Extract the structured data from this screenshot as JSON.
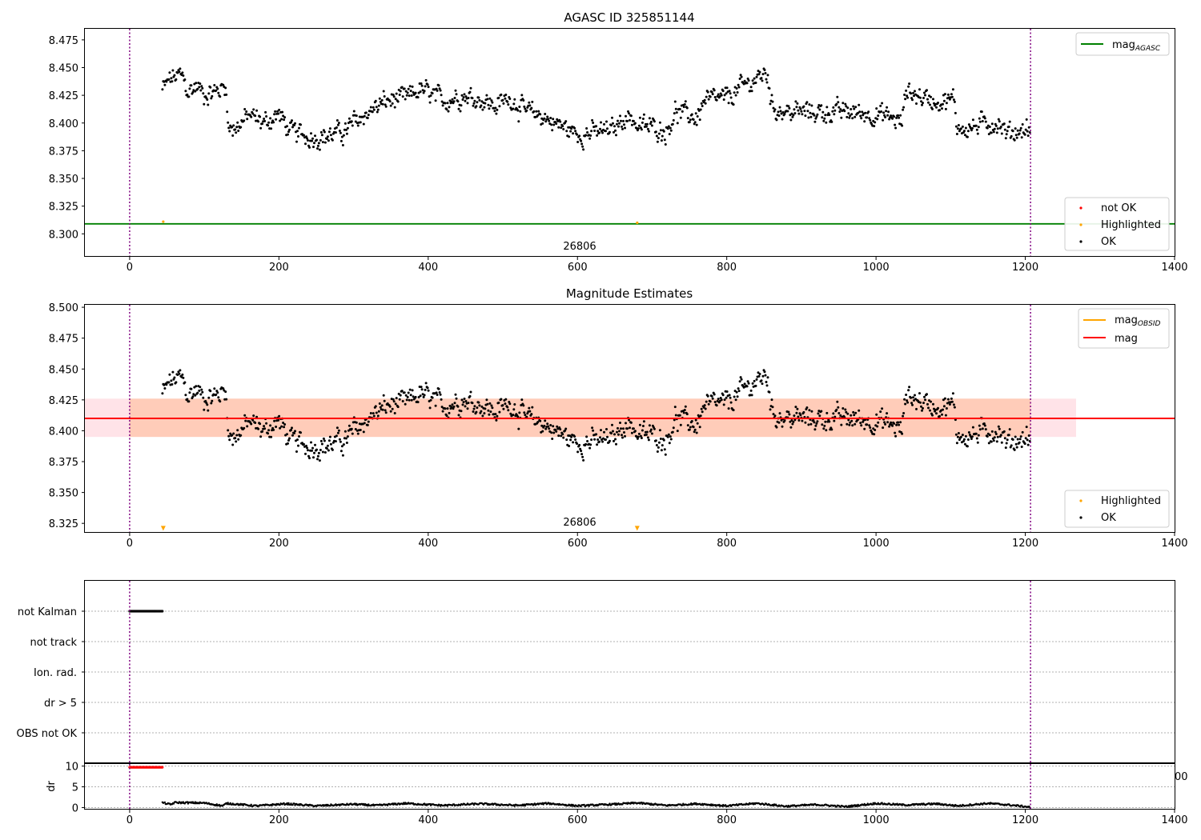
{
  "figure": {
    "panel1_title": "AGASC ID 325851144",
    "panel2_title": "Magnitude Estimates",
    "obsid_label": "26806",
    "dr_axis_label": "dr",
    "clipped_tick_label": "00"
  },
  "chart_data": [
    {
      "type": "scatter",
      "title": "AGASC ID 325851144",
      "xlim": [
        -60,
        1400
      ],
      "ylim": [
        8.28,
        8.485
      ],
      "x_ticks": [
        0,
        200,
        400,
        600,
        800,
        1000,
        1200,
        1400
      ],
      "y_ticks": [
        8.3,
        8.325,
        8.35,
        8.375,
        8.4,
        8.425,
        8.45,
        8.475
      ],
      "obs_start": 0,
      "obs_end": 1207,
      "annotation": "26806",
      "lines": [
        {
          "name": "mag_AGASC",
          "value": 8.309,
          "color": "#008000"
        }
      ],
      "legend_lines": [
        {
          "label": "mag",
          "sub": "AGASC",
          "color": "#008000"
        }
      ],
      "legend_points": [
        {
          "label": "not OK",
          "color": "#ff0000"
        },
        {
          "label": "Highlighted",
          "color": "#ffa500"
        },
        {
          "label": "OK",
          "color": "#000000"
        }
      ],
      "highlighted": [
        {
          "x": 45,
          "y": 8.311
        },
        {
          "x": 680,
          "y": 8.31
        }
      ],
      "series_points": {
        "name": "OK",
        "color": "#000000",
        "x_start": 44,
        "x_end": 1207,
        "anchors": [
          [
            44,
            8.43
          ],
          [
            55,
            8.44
          ],
          [
            70,
            8.443
          ],
          [
            78,
            8.428
          ],
          [
            90,
            8.433
          ],
          [
            100,
            8.426
          ],
          [
            115,
            8.428
          ],
          [
            130,
            8.434
          ],
          [
            132,
            8.395
          ],
          [
            145,
            8.397
          ],
          [
            160,
            8.407
          ],
          [
            180,
            8.4
          ],
          [
            200,
            8.408
          ],
          [
            215,
            8.392
          ],
          [
            240,
            8.388
          ],
          [
            265,
            8.388
          ],
          [
            290,
            8.393
          ],
          [
            300,
            8.4
          ],
          [
            320,
            8.41
          ],
          [
            345,
            8.42
          ],
          [
            370,
            8.422
          ],
          [
            390,
            8.43
          ],
          [
            420,
            8.42
          ],
          [
            445,
            8.425
          ],
          [
            470,
            8.422
          ],
          [
            490,
            8.415
          ],
          [
            510,
            8.423
          ],
          [
            530,
            8.41
          ],
          [
            550,
            8.407
          ],
          [
            570,
            8.4
          ],
          [
            600,
            8.39
          ],
          [
            630,
            8.392
          ],
          [
            650,
            8.394
          ],
          [
            660,
            8.405
          ],
          [
            675,
            8.405
          ],
          [
            680,
            8.396
          ],
          [
            700,
            8.397
          ],
          [
            720,
            8.393
          ],
          [
            730,
            8.41
          ],
          [
            760,
            8.405
          ],
          [
            770,
            8.42
          ],
          [
            800,
            8.422
          ],
          [
            820,
            8.432
          ],
          [
            840,
            8.44
          ],
          [
            855,
            8.445
          ],
          [
            860,
            8.415
          ],
          [
            880,
            8.41
          ],
          [
            900,
            8.41
          ],
          [
            960,
            8.41
          ],
          [
            1000,
            8.408
          ],
          [
            1020,
            8.405
          ],
          [
            1035,
            8.4
          ],
          [
            1040,
            8.43
          ],
          [
            1055,
            8.425
          ],
          [
            1080,
            8.42
          ],
          [
            1105,
            8.42
          ],
          [
            1108,
            8.398
          ],
          [
            1125,
            8.395
          ],
          [
            1150,
            8.4
          ],
          [
            1165,
            8.4
          ],
          [
            1175,
            8.39
          ],
          [
            1200,
            8.395
          ],
          [
            1207,
            8.393
          ]
        ]
      }
    },
    {
      "type": "scatter",
      "title": "Magnitude Estimates",
      "xlim": [
        -60,
        1400
      ],
      "ylim": [
        8.318,
        8.502
      ],
      "x_ticks": [
        0,
        200,
        400,
        600,
        800,
        1000,
        1200,
        1400
      ],
      "y_ticks": [
        8.325,
        8.35,
        8.375,
        8.4,
        8.425,
        8.45,
        8.475,
        8.5
      ],
      "obs_start": 0,
      "obs_end": 1207,
      "annotation": "26806",
      "mag": 8.41,
      "mag_band": [
        8.395,
        8.426
      ],
      "band_xlim": [
        -60,
        1268
      ],
      "legend_lines": [
        {
          "label": "mag",
          "sub": "OBSID",
          "color": "#ffa500"
        },
        {
          "label": "mag",
          "sub": "",
          "color": "#ff0000"
        }
      ],
      "legend_points": [
        {
          "label": "Highlighted",
          "color": "#ffa500"
        },
        {
          "label": "OK",
          "color": "#000000"
        }
      ],
      "highlighted": [
        {
          "x": 45,
          "y": 8.321
        },
        {
          "x": 680,
          "y": 8.321
        }
      ]
    },
    {
      "type": "scatter",
      "title": "",
      "xlim": [
        -60,
        1400
      ],
      "flag_categories": [
        "not Kalman",
        "not track",
        "Ion. rad.",
        "dr > 5",
        "OBS not OK"
      ],
      "flag_segments": [
        {
          "category": "not Kalman",
          "x_start": 0,
          "x_end": 44
        }
      ],
      "obs_start": 0,
      "obs_end": 1207
    },
    {
      "type": "scatter",
      "title": "",
      "xlim": [
        -60,
        1400
      ],
      "ylim": [
        -0.3,
        10.5
      ],
      "x_ticks": [
        0,
        200,
        400,
        600,
        800,
        1000,
        1200,
        1400
      ],
      "y_ticks": [
        0,
        5,
        10
      ],
      "ylabel": "dr",
      "obs_start": 0,
      "obs_end": 1207,
      "not_ok_segment": {
        "x_start": 0,
        "x_end": 44,
        "value": 9.7
      },
      "dr_anchors": [
        [
          44,
          1.2
        ],
        [
          55,
          0.7
        ],
        [
          60,
          1.2
        ],
        [
          100,
          1.1
        ],
        [
          125,
          0.4
        ],
        [
          130,
          1.0
        ],
        [
          170,
          0.4
        ],
        [
          210,
          0.9
        ],
        [
          250,
          0.4
        ],
        [
          300,
          0.8
        ],
        [
          330,
          0.5
        ],
        [
          370,
          1.0
        ],
        [
          420,
          0.5
        ],
        [
          470,
          0.9
        ],
        [
          520,
          0.5
        ],
        [
          560,
          1.0
        ],
        [
          600,
          0.4
        ],
        [
          650,
          0.8
        ],
        [
          680,
          1.1
        ],
        [
          720,
          0.5
        ],
        [
          760,
          0.9
        ],
        [
          800,
          0.4
        ],
        [
          840,
          1.0
        ],
        [
          880,
          0.3
        ],
        [
          920,
          0.7
        ],
        [
          960,
          0.2
        ],
        [
          1000,
          1.0
        ],
        [
          1040,
          0.6
        ],
        [
          1080,
          0.9
        ],
        [
          1110,
          0.4
        ],
        [
          1150,
          1.0
        ],
        [
          1180,
          0.6
        ],
        [
          1207,
          0.1
        ]
      ]
    }
  ]
}
